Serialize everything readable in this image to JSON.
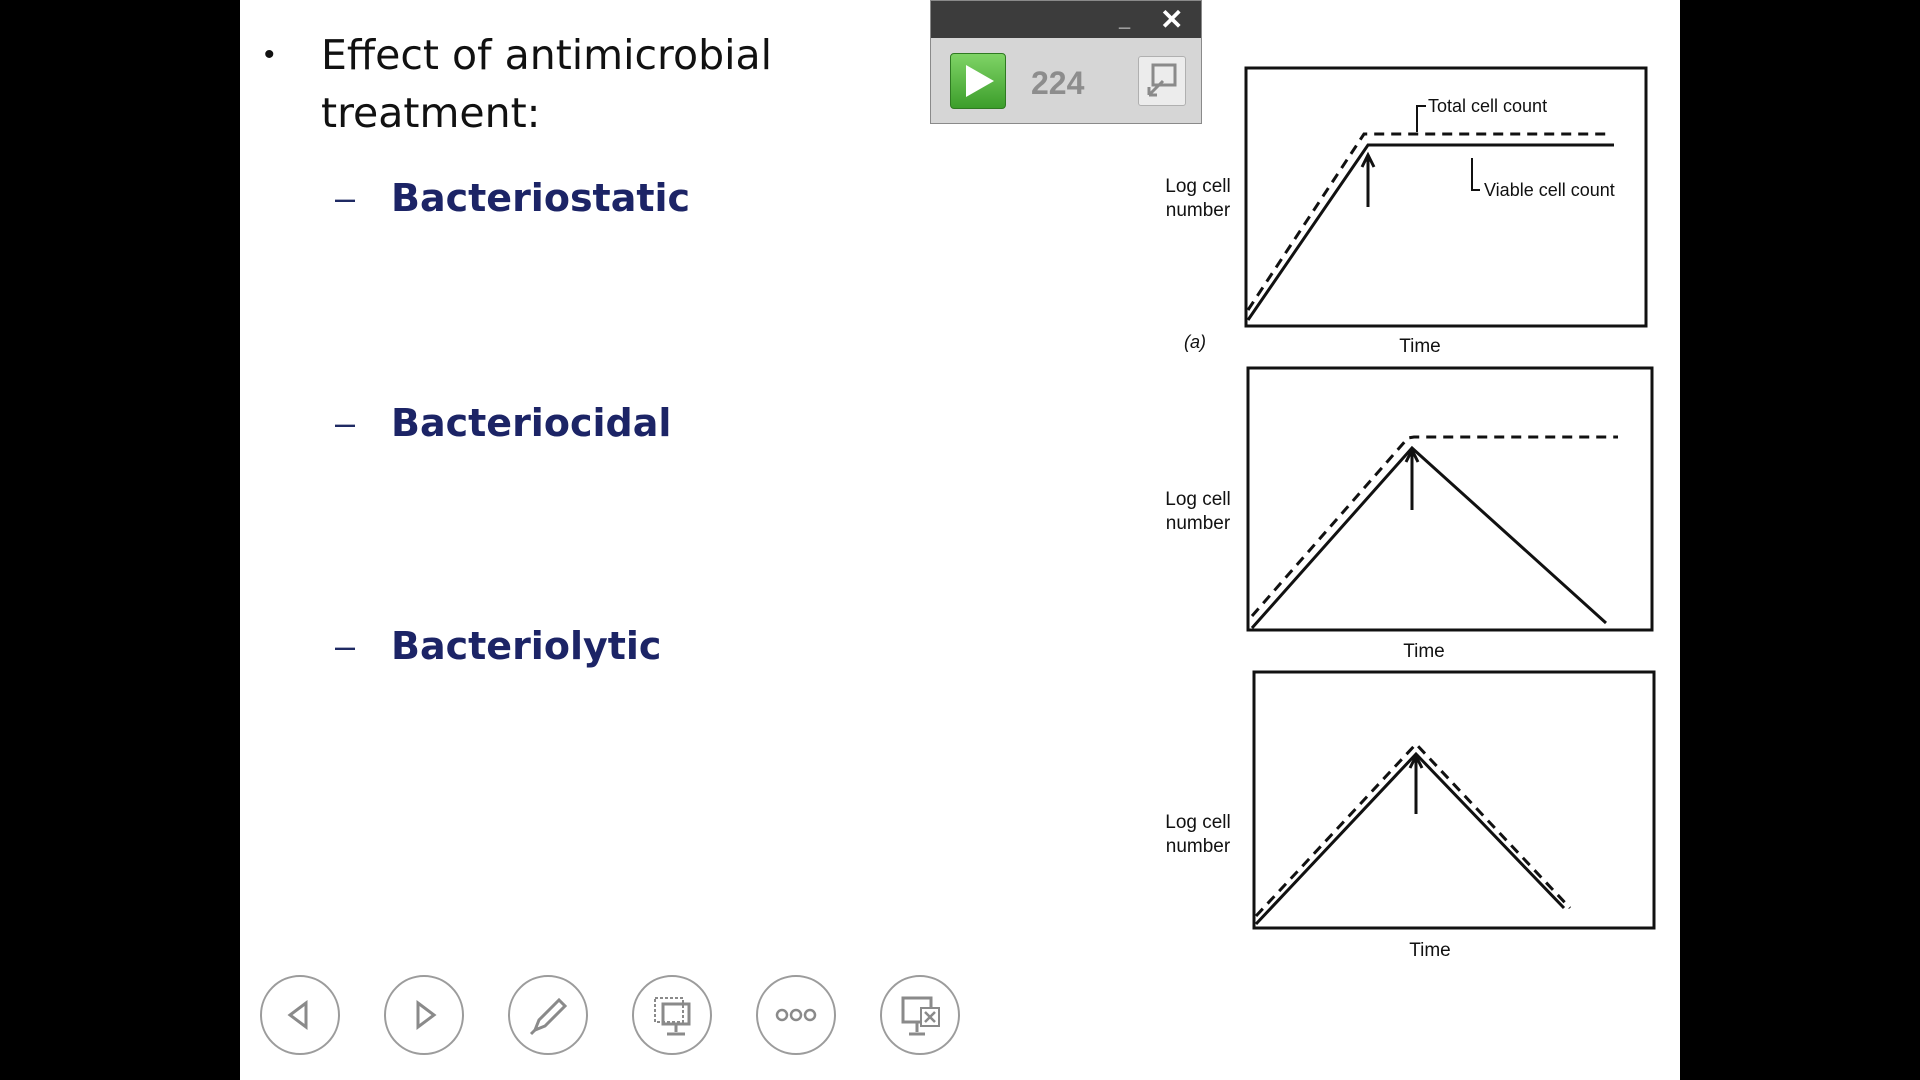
{
  "slide": {
    "bullet": "Effect of antimicrobial treatment:",
    "subitems": [
      {
        "dash": "–",
        "label": "Bacteriostatic"
      },
      {
        "dash": "–",
        "label": "Bacteriocidal"
      },
      {
        "dash": "–",
        "label": "Bacteriolytic"
      }
    ]
  },
  "timer": {
    "value": "224",
    "minimize_glyph": "_",
    "close_glyph": "✕"
  },
  "figure": {
    "y_label_line1": "Log cell",
    "y_label_line2": "number",
    "x_label": "Time",
    "panel_a_tag": "(a)",
    "legend_total": "Total cell count",
    "legend_viable": "Viable cell count"
  },
  "toolbar": {
    "icons": [
      "previous-slide-icon",
      "next-slide-icon",
      "pen-icon",
      "see-all-slides-icon",
      "more-options-icon",
      "end-show-icon"
    ]
  }
}
